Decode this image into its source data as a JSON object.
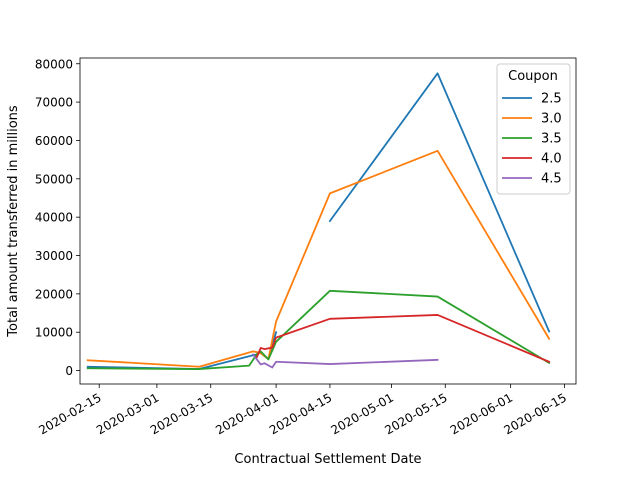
{
  "chart_data": {
    "type": "line",
    "title": "",
    "xlabel": "Contractual Settlement Date",
    "ylabel": "Total amount transferred in millions",
    "x_ticks": [
      "2020-02-15",
      "2020-03-01",
      "2020-03-15",
      "2020-04-01",
      "2020-04-15",
      "2020-05-01",
      "2020-05-15",
      "2020-06-01",
      "2020-06-15"
    ],
    "y_ticks": [
      0,
      10000,
      20000,
      30000,
      40000,
      50000,
      60000,
      70000,
      80000
    ],
    "xlim": [
      "2020-02-10",
      "2020-06-18"
    ],
    "ylim": [
      -3500,
      81500
    ],
    "grid": false,
    "legend": {
      "title": "Coupon",
      "placement": "upper-right"
    },
    "series": [
      {
        "name": "2.5",
        "color": "#1f77b4",
        "points": [
          {
            "x": "2020-02-12",
            "y": 1000
          },
          {
            "x": "2020-03-12",
            "y": 400
          },
          {
            "x": "2020-03-26",
            "y": 4000
          },
          {
            "x": "2020-03-27",
            "y": 4200
          },
          {
            "x": "2020-03-28",
            "y": 4800
          },
          {
            "x": "2020-03-30",
            "y": 3000
          },
          {
            "x": "2020-04-01",
            "y": 10000
          },
          {
            "x": null,
            "y": null
          },
          {
            "x": "2020-04-15",
            "y": 39000
          },
          {
            "x": "2020-05-13",
            "y": 77500
          },
          {
            "x": "2020-06-11",
            "y": 10200
          }
        ]
      },
      {
        "name": "3.0",
        "color": "#ff7f0e",
        "points": [
          {
            "x": "2020-02-12",
            "y": 2700
          },
          {
            "x": "2020-03-12",
            "y": 1000
          },
          {
            "x": "2020-03-26",
            "y": 5000
          },
          {
            "x": "2020-03-27",
            "y": 4800
          },
          {
            "x": "2020-03-28",
            "y": 4500
          },
          {
            "x": "2020-03-30",
            "y": 3000
          },
          {
            "x": "2020-04-01",
            "y": 12800
          },
          {
            "x": "2020-04-15",
            "y": 46200
          },
          {
            "x": "2020-05-13",
            "y": 57300
          },
          {
            "x": "2020-06-11",
            "y": 8300
          }
        ]
      },
      {
        "name": "3.5",
        "color": "#2ca02c",
        "points": [
          {
            "x": "2020-02-12",
            "y": 600
          },
          {
            "x": "2020-03-12",
            "y": 400
          },
          {
            "x": "2020-03-25",
            "y": 1300
          },
          {
            "x": "2020-03-27",
            "y": 4300
          },
          {
            "x": "2020-03-28",
            "y": 5000
          },
          {
            "x": "2020-03-30",
            "y": 2900
          },
          {
            "x": "2020-04-01",
            "y": 7500
          },
          {
            "x": "2020-04-15",
            "y": 20800
          },
          {
            "x": "2020-05-13",
            "y": 19300
          },
          {
            "x": "2020-06-11",
            "y": 2000
          }
        ]
      },
      {
        "name": "4.0",
        "color": "#d62728",
        "points": [
          {
            "x": "2020-03-27",
            "y": 3500
          },
          {
            "x": "2020-03-28",
            "y": 5900
          },
          {
            "x": "2020-03-29",
            "y": 5600
          },
          {
            "x": "2020-03-31",
            "y": 6000
          },
          {
            "x": "2020-04-01",
            "y": 8600
          },
          {
            "x": "2020-04-15",
            "y": 13500
          },
          {
            "x": "2020-05-13",
            "y": 14500
          },
          {
            "x": "2020-06-11",
            "y": 2300
          }
        ]
      },
      {
        "name": "4.5",
        "color": "#9467bd",
        "points": [
          {
            "x": "2020-03-26",
            "y": 4200
          },
          {
            "x": "2020-03-28",
            "y": 1600
          },
          {
            "x": "2020-03-29",
            "y": 1900
          },
          {
            "x": "2020-03-31",
            "y": 800
          },
          {
            "x": "2020-04-01",
            "y": 2300
          },
          {
            "x": "2020-04-15",
            "y": 1700
          },
          {
            "x": "2020-05-13",
            "y": 2800
          }
        ]
      }
    ]
  }
}
